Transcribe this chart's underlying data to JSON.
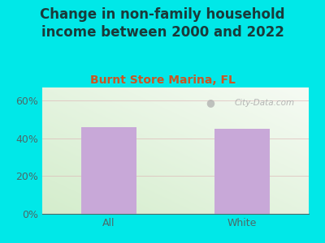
{
  "title": "Change in non-family household\nincome between 2000 and 2022",
  "subtitle": "Burnt Store Marina, FL",
  "categories": [
    "All",
    "White"
  ],
  "values": [
    46.0,
    45.0
  ],
  "bar_color": "#c8a8d8",
  "outer_bg": "#00e8e8",
  "plot_bg_topleft": "#d4edcc",
  "plot_bg_bottomright": "#f0f8f0",
  "title_color": "#1a3a3a",
  "subtitle_color": "#cc5522",
  "tick_label_color": "#4a6a6a",
  "ytick_labels": [
    "0%",
    "20%",
    "40%",
    "60%"
  ],
  "ytick_values": [
    0,
    20,
    40,
    60
  ],
  "ylim": [
    0,
    67
  ],
  "watermark": "City-Data.com",
  "watermark_color": "#aaaaaa",
  "grid_color": "#ddb8b8",
  "title_fontsize": 12,
  "subtitle_fontsize": 10,
  "tick_fontsize": 9
}
